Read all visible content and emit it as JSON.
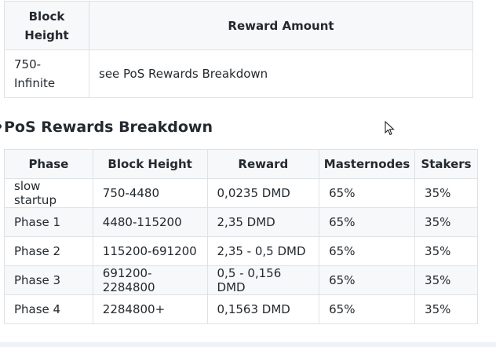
{
  "block_table": {
    "headers": [
      "Block\nHeight",
      "Reward Amount"
    ],
    "rows": [
      [
        "750-\nInfinite",
        "see PoS Rewards Breakdown"
      ]
    ]
  },
  "pos_section": {
    "title": "PoS Rewards Breakdown",
    "headers": [
      "Phase",
      "Block Height",
      "Reward",
      "Masternodes",
      "Stakers"
    ],
    "rows": [
      [
        "slow startup",
        "750-4480",
        "0,0235 DMD",
        "65%",
        "35%"
      ],
      [
        "Phase 1",
        "4480-115200",
        "2,35 DMD",
        "65%",
        "35%"
      ],
      [
        "Phase 2",
        "115200-691200",
        "2,35 - 0,5 DMD",
        "65%",
        "35%"
      ],
      [
        "Phase 3",
        "691200-2284800",
        "0,5 - 0,156 DMD",
        "65%",
        "35%"
      ],
      [
        "Phase 4",
        "2284800+",
        "0,1563 DMD",
        "65%",
        "35%"
      ]
    ]
  },
  "icons": {
    "cursor": "mouse-pointer-icon"
  }
}
